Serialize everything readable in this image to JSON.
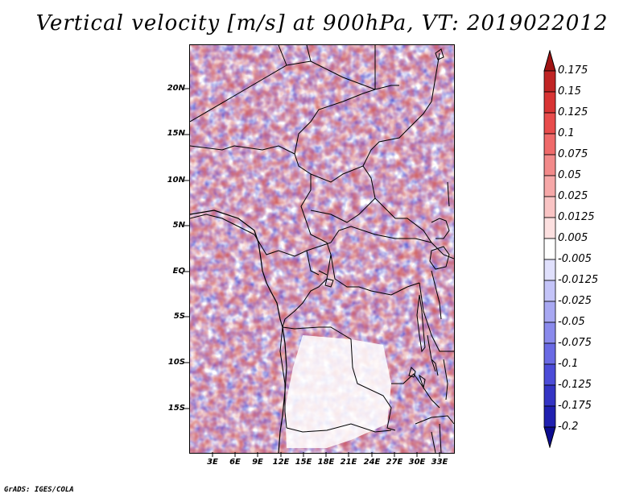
{
  "title": "Vertical velocity [m/s] at 900hPa, VT: 2019022012",
  "credit": "GrADS: IGES/COLA",
  "y_axis": [
    "20N",
    "15N",
    "10N",
    "5N",
    "EQ",
    "5S",
    "10S",
    "15S"
  ],
  "x_axis": [
    "3E",
    "6E",
    "9E",
    "12E",
    "15E",
    "18E",
    "21E",
    "24E",
    "27E",
    "30E",
    "33E"
  ],
  "colorbar": {
    "labels": [
      "0.175",
      "0.15",
      "0.125",
      "0.1",
      "0.075",
      "0.05",
      "0.025",
      "0.0125",
      "0.005",
      "-0.005",
      "-0.0125",
      "-0.025",
      "-0.05",
      "-0.075",
      "-0.1",
      "-0.125",
      "-0.175",
      "-0.2"
    ],
    "colors": [
      "#a01414",
      "#c02424",
      "#d83434",
      "#e84c4c",
      "#ef6a6a",
      "#f28a8a",
      "#f6a8a8",
      "#f9c4c4",
      "#fce0e0",
      "#ffffff",
      "#e0e0fc",
      "#c4c4f8",
      "#a8a8f2",
      "#8a8aec",
      "#6a6ae4",
      "#4c4cd8",
      "#3434c4",
      "#2020b0",
      "#0c0c90"
    ]
  }
}
